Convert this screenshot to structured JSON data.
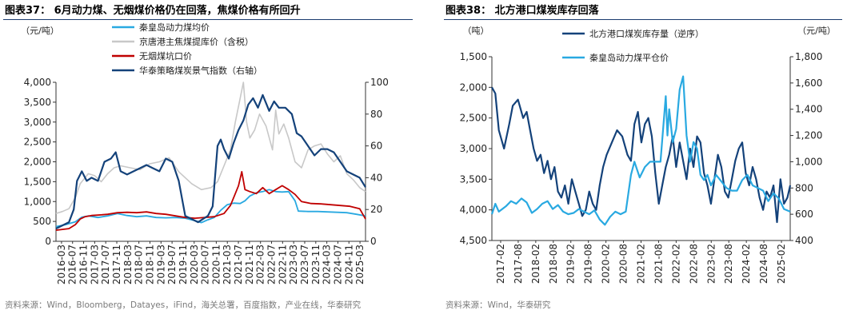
{
  "charts": [
    {
      "title": "图表37：  6月动力煤、无烟煤价格仍在回落，焦煤价格有所回升",
      "source": "资料来源：Wind，Bloomberg，Datayes，iFind，海关总署，百度指数，产业在线，华泰研究",
      "left_unit": "（元/吨）",
      "colors": {
        "qhd": "#29a9e1",
        "jingtang": "#c8c8c8",
        "anthracite": "#c00000",
        "index": "#14427a"
      },
      "chart_data": {
        "type": "line",
        "title": "图表37：  6月动力煤、无烟煤价格仍在回落，焦煤价格有所回升",
        "xlabel": "",
        "ylabel": "（元/吨）",
        "ylim": [
          0,
          4000
        ],
        "y2lim": [
          0,
          100
        ],
        "y_ticks": [
          "0",
          "500",
          "1,000",
          "1,500",
          "2,000",
          "2,500",
          "3,000",
          "3,500",
          "4,000"
        ],
        "y2_ticks": [
          "0",
          "20",
          "40",
          "60",
          "80",
          "100"
        ],
        "x_ticks": [
          "2016-03",
          "2016-07",
          "2016-11",
          "2017-03",
          "2017-07",
          "2017-11",
          "2018-03",
          "2018-07",
          "2018-11",
          "2019-03",
          "2019-07",
          "2019-11",
          "2020-03",
          "2020-07",
          "2020-11",
          "2021-03",
          "2021-07",
          "2021-11",
          "2022-03",
          "2022-07",
          "2022-11",
          "2023-03",
          "2023-07",
          "2023-11",
          "2024-03",
          "2024-07",
          "2024-11",
          "2025-03"
        ],
        "x_range": [
          2016.0,
          2025.58
        ],
        "grid": false,
        "legend_position": "top-center",
        "series": [
          {
            "name": "秦皇岛动力煤均价",
            "axis": "left",
            "x": [
              2016.0,
              2016.3,
              2016.6,
              2016.8,
              2017.0,
              2017.3,
              2017.6,
              2017.9,
              2018.2,
              2018.5,
              2018.8,
              2019.1,
              2019.4,
              2019.7,
              2020.0,
              2020.3,
              2020.5,
              2020.7,
              2020.9,
              2021.1,
              2021.3,
              2021.5,
              2021.7,
              2021.85,
              2022.0,
              2022.2,
              2022.4,
              2022.6,
              2022.8,
              2023.0,
              2023.2,
              2023.4,
              2023.5,
              2023.8,
              2024.1,
              2024.4,
              2024.7,
              2025.0,
              2025.3,
              2025.58
            ],
            "y": [
              370,
              420,
              490,
              610,
              640,
              600,
              640,
              700,
              650,
              620,
              640,
              600,
              590,
              600,
              580,
              520,
              470,
              540,
              600,
              780,
              920,
              960,
              950,
              1020,
              1140,
              1220,
              1250,
              1300,
              1250,
              1240,
              1250,
              1020,
              760,
              750,
              750,
              740,
              730,
              720,
              680,
              640
            ]
          },
          {
            "name": "京唐港主焦煤提库价（含税）",
            "axis": "left",
            "x": [
              2016.0,
              2016.2,
              2016.4,
              2016.6,
              2016.75,
              2016.9,
              2017.0,
              2017.2,
              2017.4,
              2017.6,
              2017.8,
              2018.0,
              2018.3,
              2018.6,
              2018.9,
              2019.2,
              2019.5,
              2019.8,
              2020.0,
              2020.2,
              2020.5,
              2020.8,
              2021.0,
              2021.2,
              2021.4,
              2021.55,
              2021.7,
              2021.8,
              2021.9,
              2022.0,
              2022.15,
              2022.3,
              2022.5,
              2022.7,
              2022.8,
              2022.9,
              2023.05,
              2023.2,
              2023.4,
              2023.6,
              2023.8,
              2024.0,
              2024.2,
              2024.4,
              2024.6,
              2024.8,
              2025.0,
              2025.2,
              2025.4,
              2025.58
            ],
            "y": [
              700,
              750,
              820,
              1100,
              1450,
              1600,
              1700,
              1650,
              1500,
              1700,
              1850,
              1900,
              1850,
              1800,
              1950,
              2000,
              2100,
              1750,
              1600,
              1450,
              1300,
              1350,
              1500,
              1900,
              2300,
              3000,
              3600,
              4000,
              3000,
              2600,
              2800,
              3200,
              2900,
              2300,
              3300,
              2700,
              2950,
              2600,
              2000,
              1850,
              2300,
              2400,
              2450,
              2200,
              2000,
              2150,
              1700,
              1550,
              1350,
              1250
            ]
          },
          {
            "name": "无烟煤坑口价",
            "axis": "left",
            "x": [
              2016.0,
              2016.2,
              2016.4,
              2016.6,
              2016.75,
              2016.9,
              2017.1,
              2017.3,
              2017.6,
              2017.9,
              2018.2,
              2018.5,
              2018.8,
              2019.1,
              2019.4,
              2019.7,
              2020.0,
              2020.3,
              2020.6,
              2020.9,
              2021.2,
              2021.4,
              2021.55,
              2021.65,
              2021.75,
              2021.85,
              2022.0,
              2022.2,
              2022.4,
              2022.6,
              2022.8,
              2023.0,
              2023.2,
              2023.4,
              2023.6,
              2023.9,
              2024.2,
              2024.5,
              2024.8,
              2025.1,
              2025.4,
              2025.58
            ],
            "y": [
              280,
              300,
              320,
              420,
              560,
              620,
              650,
              660,
              680,
              720,
              730,
              720,
              740,
              700,
              680,
              640,
              600,
              580,
              600,
              620,
              700,
              900,
              1200,
              1400,
              1750,
              1300,
              1250,
              1200,
              1350,
              1200,
              1300,
              1400,
              1300,
              1180,
              1000,
              950,
              940,
              920,
              900,
              880,
              820,
              560
            ]
          },
          {
            "name": "华泰策略煤炭景气指数（右轴）",
            "axis": "right",
            "x": [
              2016.0,
              2016.2,
              2016.4,
              2016.55,
              2016.65,
              2016.8,
              2016.95,
              2017.1,
              2017.3,
              2017.5,
              2017.7,
              2017.85,
              2018.0,
              2018.2,
              2018.4,
              2018.6,
              2018.8,
              2019.0,
              2019.2,
              2019.4,
              2019.6,
              2019.8,
              2020.0,
              2020.2,
              2020.4,
              2020.55,
              2020.7,
              2020.85,
              2021.0,
              2021.1,
              2021.2,
              2021.35,
              2021.5,
              2021.65,
              2021.8,
              2021.95,
              2022.1,
              2022.25,
              2022.4,
              2022.6,
              2022.75,
              2022.9,
              2023.1,
              2023.3,
              2023.45,
              2023.6,
              2023.8,
              2024.0,
              2024.2,
              2024.4,
              2024.6,
              2024.8,
              2025.0,
              2025.2,
              2025.4,
              2025.58
            ],
            "y": [
              8,
              10,
              12,
              20,
              38,
              44,
              38,
              40,
              38,
              50,
              52,
              56,
              44,
              42,
              44,
              46,
              48,
              46,
              44,
              52,
              50,
              38,
              16,
              14,
              12,
              14,
              16,
              22,
              60,
              64,
              58,
              52,
              62,
              70,
              76,
              86,
              90,
              84,
              92,
              82,
              88,
              84,
              84,
              80,
              68,
              66,
              60,
              54,
              58,
              58,
              56,
              50,
              44,
              42,
              40,
              34
            ]
          }
        ]
      }
    },
    {
      "title": "图表38：  北方港口煤炭库存回落",
      "source": "资料来源：Wind，华泰研究",
      "left_unit": "（吨）",
      "right_unit": "（元/吨）",
      "colors": {
        "stock": "#14427a",
        "price": "#29a9e1"
      },
      "chart_data": {
        "type": "line",
        "title": "图表38：  北方港口煤炭库存回落",
        "xlabel": "",
        "ylabel": "（吨）",
        "y2label": "（元/吨）",
        "ylim": [
          1500,
          4500
        ],
        "y_inverted": true,
        "y2lim": [
          400,
          1800
        ],
        "y_ticks": [
          "1,500",
          "2,000",
          "2,500",
          "3,000",
          "3,500",
          "4,000",
          "4,500"
        ],
        "y2_ticks": [
          "400",
          "600",
          "800",
          "1,000",
          "1,200",
          "1,400",
          "1,600",
          "1,800"
        ],
        "x_ticks": [
          "2017-02",
          "2017-08",
          "2018-02",
          "2018-08",
          "2019-02",
          "2019-08",
          "2020-02",
          "2020-08",
          "2021-02",
          "2021-08",
          "2022-02",
          "2022-08",
          "2023-02",
          "2023-08",
          "2024-02",
          "2024-08",
          "2025-02"
        ],
        "x_range": [
          2017.0,
          2025.58
        ],
        "grid": false,
        "legend_position": "top-center",
        "series": [
          {
            "name": "北方港口煤炭库存量（逆序）",
            "axis": "left",
            "x": [
              2017.0,
              2017.1,
              2017.2,
              2017.35,
              2017.5,
              2017.6,
              2017.75,
              2017.9,
              2018.0,
              2018.1,
              2018.2,
              2018.3,
              2018.4,
              2018.5,
              2018.6,
              2018.7,
              2018.8,
              2018.9,
              2019.0,
              2019.1,
              2019.2,
              2019.3,
              2019.4,
              2019.5,
              2019.6,
              2019.7,
              2019.8,
              2019.9,
              2020.0,
              2020.1,
              2020.2,
              2020.3,
              2020.45,
              2020.6,
              2020.75,
              2020.9,
              2021.0,
              2021.1,
              2021.2,
              2021.3,
              2021.4,
              2021.5,
              2021.6,
              2021.7,
              2021.8,
              2021.9,
              2022.0,
              2022.1,
              2022.2,
              2022.3,
              2022.4,
              2022.5,
              2022.6,
              2022.7,
              2022.8,
              2022.9,
              2023.0,
              2023.1,
              2023.2,
              2023.3,
              2023.4,
              2023.5,
              2023.6,
              2023.7,
              2023.8,
              2023.9,
              2024.0,
              2024.1,
              2024.2,
              2024.3,
              2024.4,
              2024.5,
              2024.6,
              2024.7,
              2024.8,
              2024.9,
              2025.0,
              2025.1,
              2025.2,
              2025.3,
              2025.4,
              2025.5,
              2025.58
            ],
            "y": [
              2000,
              2100,
              2700,
              3000,
              2600,
              2300,
              2200,
              2500,
              2400,
              2700,
              3000,
              3200,
              3100,
              3400,
              3200,
              3500,
              3300,
              3700,
              3800,
              3600,
              3900,
              3500,
              3700,
              3900,
              4100,
              4000,
              3700,
              3900,
              4000,
              3600,
              3300,
              3100,
              2900,
              2700,
              2800,
              3100,
              3200,
              2600,
              2400,
              2900,
              2600,
              2500,
              2800,
              3400,
              3900,
              3600,
              3300,
              3100,
              2800,
              3300,
              2900,
              3200,
              3500,
              3000,
              3300,
              2800,
              2900,
              3400,
              3600,
              3900,
              3500,
              3100,
              3300,
              3700,
              3800,
              3500,
              3200,
              3000,
              2900,
              3400,
              3600,
              3300,
              3500,
              3800,
              4000,
              3700,
              3800,
              3600,
              4200,
              3500,
              3900,
              3800,
              3600
            ]
          },
          {
            "name": "秦皇岛动力煤平仓价",
            "axis": "right",
            "x": [
              2017.0,
              2017.1,
              2017.2,
              2017.3,
              2017.4,
              2017.55,
              2017.7,
              2017.85,
              2018.0,
              2018.15,
              2018.3,
              2018.45,
              2018.6,
              2018.75,
              2018.9,
              2019.05,
              2019.2,
              2019.35,
              2019.5,
              2019.65,
              2019.8,
              2019.95,
              2020.1,
              2020.25,
              2020.4,
              2020.55,
              2020.7,
              2020.85,
              2021.0,
              2021.1,
              2021.25,
              2021.4,
              2021.55,
              2021.7,
              2021.85,
              2022.0,
              2022.05,
              2022.1,
              2022.2,
              2022.3,
              2022.4,
              2022.5,
              2022.6,
              2022.7,
              2022.8,
              2022.9,
              2023.0,
              2023.1,
              2023.2,
              2023.3,
              2023.45,
              2023.6,
              2023.75,
              2023.9,
              2024.05,
              2024.2,
              2024.35,
              2024.5,
              2024.65,
              2024.8,
              2024.95,
              2025.1,
              2025.25,
              2025.4,
              2025.58
            ],
            "y": [
              600,
              680,
              620,
              640,
              660,
              700,
              680,
              720,
              690,
              610,
              640,
              680,
              700,
              640,
              670,
              620,
              600,
              610,
              640,
              620,
              600,
              630,
              560,
              520,
              580,
              620,
              600,
              620,
              900,
              1000,
              880,
              960,
              1000,
              1000,
              1000,
              1500,
              1200,
              1400,
              1150,
              1250,
              1550,
              1650,
              1200,
              1000,
              1150,
              1100,
              900,
              860,
              900,
              820,
              900,
              850,
              800,
              780,
              780,
              860,
              900,
              820,
              800,
              780,
              700,
              760,
              720,
              640,
              620
            ]
          }
        ]
      }
    }
  ]
}
